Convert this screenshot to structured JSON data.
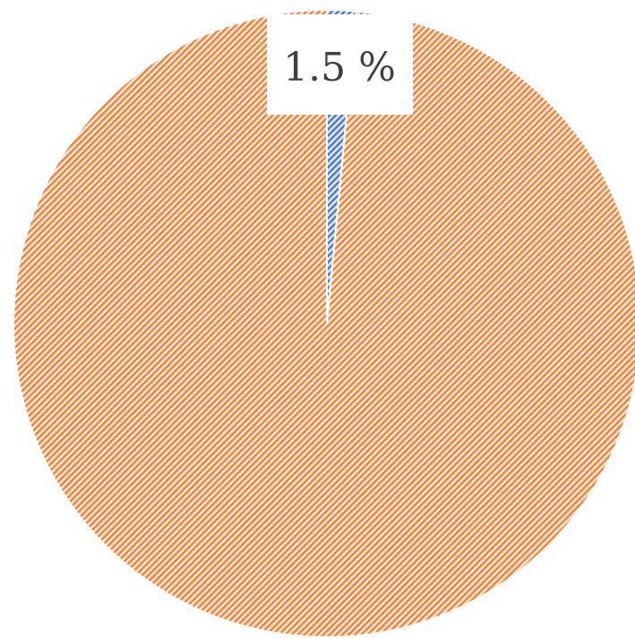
{
  "chart_data": {
    "type": "pie",
    "values": [
      1.5,
      98.5
    ],
    "colors": [
      "#4472c4",
      "#ed7d31"
    ],
    "hatched": true,
    "data_labels": [
      "1.5 %"
    ],
    "start_angle_deg": 0,
    "direction": "clockwise"
  }
}
